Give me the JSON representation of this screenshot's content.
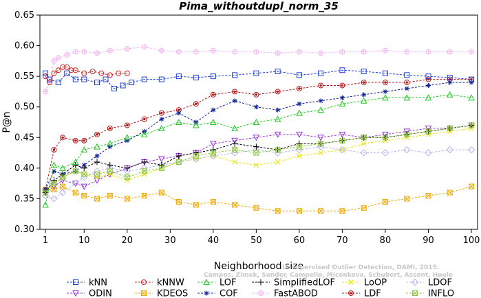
{
  "chart_data": {
    "type": "line",
    "title": "Pima_withoutdupl_norm_35",
    "xlabel": "Neighborhood size",
    "ylabel": "P@n",
    "xlim": [
      1,
      100
    ],
    "ylim": [
      0.3,
      0.65
    ],
    "xticks": [
      1,
      10,
      20,
      30,
      40,
      50,
      60,
      70,
      80,
      90,
      100
    ],
    "xtick_labels": [
      "1",
      "10",
      "20",
      "30",
      "40",
      "50",
      "60",
      "70",
      "80",
      "90",
      "100"
    ],
    "yticks": [
      0.3,
      0.35,
      0.4,
      0.45,
      0.5,
      0.55,
      0.6,
      0.65
    ],
    "ytick_labels": [
      "0.30",
      "0.35",
      "0.40",
      "0.45",
      "0.50",
      "0.55",
      "0.60",
      "0.65"
    ],
    "grid": false,
    "legend_position": "bottom",
    "watermark": [
      "Unsupervised Outlier Detection, DAMI, 2015.",
      "Campos, Zimek, Sander, Campello, Micenkova, Schubert, Assent, Houle"
    ],
    "series": [
      {
        "name": "kNN",
        "color": "#1a3cd8",
        "marker": "square",
        "x": [
          1,
          2,
          4,
          6,
          8,
          10,
          13,
          15,
          17,
          19,
          21,
          24,
          28,
          32,
          36,
          40,
          45,
          50,
          55,
          60,
          65,
          70,
          75,
          80,
          85,
          90,
          95,
          100
        ],
        "values": [
          0.555,
          0.545,
          0.54,
          0.555,
          0.545,
          0.545,
          0.54,
          0.545,
          0.53,
          0.535,
          0.54,
          0.545,
          0.545,
          0.55,
          0.548,
          0.55,
          0.552,
          0.555,
          0.558,
          0.552,
          0.555,
          0.56,
          0.558,
          0.555,
          0.552,
          0.55,
          0.548,
          0.545
        ]
      },
      {
        "name": "kNNW",
        "color": "#d81c1c",
        "marker": "circle",
        "x": [
          1,
          2,
          3,
          4,
          5,
          6,
          7,
          8,
          10,
          12,
          14,
          16,
          18,
          20
        ],
        "values": [
          0.55,
          0.54,
          0.555,
          0.56,
          0.565,
          0.565,
          0.56,
          0.56,
          0.555,
          0.558,
          0.555,
          0.552,
          0.555,
          0.555
        ]
      },
      {
        "name": "LOF",
        "color": "#1ec81e",
        "marker": "triangle",
        "x": [
          1,
          3,
          5,
          8,
          10,
          13,
          16,
          20,
          24,
          28,
          32,
          36,
          40,
          45,
          50,
          55,
          60,
          65,
          70,
          75,
          80,
          85,
          90,
          95,
          100
        ],
        "values": [
          0.34,
          0.405,
          0.4,
          0.41,
          0.43,
          0.435,
          0.44,
          0.45,
          0.455,
          0.465,
          0.475,
          0.47,
          0.475,
          0.465,
          0.475,
          0.48,
          0.49,
          0.495,
          0.505,
          0.51,
          0.515,
          0.515,
          0.515,
          0.52,
          0.515
        ]
      },
      {
        "name": "SimplifiedLOF",
        "color": "#000000",
        "marker": "plus",
        "x": [
          1,
          3,
          5,
          8,
          10,
          13,
          16,
          20,
          24,
          28,
          32,
          36,
          40,
          45,
          50,
          55,
          60,
          65,
          70,
          75,
          80,
          85,
          90,
          95,
          100
        ],
        "values": [
          0.36,
          0.38,
          0.39,
          0.405,
          0.4,
          0.41,
          0.405,
          0.4,
          0.41,
          0.405,
          0.42,
          0.425,
          0.43,
          0.44,
          0.435,
          0.43,
          0.44,
          0.44,
          0.445,
          0.45,
          0.45,
          0.455,
          0.46,
          0.465,
          0.47
        ]
      },
      {
        "name": "LoOP",
        "color": "#e6e600",
        "marker": "x",
        "x": [
          1,
          3,
          5,
          8,
          10,
          13,
          16,
          20,
          24,
          28,
          32,
          36,
          40,
          45,
          50,
          55,
          60,
          65,
          70,
          75,
          80,
          85,
          90,
          95,
          100
        ],
        "values": [
          0.365,
          0.375,
          0.385,
          0.395,
          0.39,
          0.385,
          0.39,
          0.38,
          0.39,
          0.4,
          0.41,
          0.415,
          0.42,
          0.41,
          0.405,
          0.41,
          0.42,
          0.425,
          0.43,
          0.44,
          0.445,
          0.45,
          0.455,
          0.46,
          0.465
        ]
      },
      {
        "name": "LDOF",
        "color": "#b4b4f0",
        "marker": "diamond",
        "x": [
          1,
          3,
          5,
          8,
          10,
          13,
          16,
          20,
          24,
          28,
          32,
          36,
          40,
          45,
          50,
          55,
          60,
          65,
          70,
          75,
          80,
          85,
          90,
          95,
          100
        ],
        "values": [
          0.355,
          0.35,
          0.36,
          0.375,
          0.385,
          0.395,
          0.4,
          0.395,
          0.4,
          0.405,
          0.41,
          0.415,
          0.42,
          0.425,
          0.43,
          0.425,
          0.43,
          0.435,
          0.43,
          0.425,
          0.425,
          0.43,
          0.425,
          0.43,
          0.43
        ]
      },
      {
        "name": "ODIN",
        "color": "#9b30d8",
        "marker": "triangle-down",
        "x": [
          1,
          3,
          5,
          8,
          10,
          13,
          16,
          20,
          24,
          28,
          32,
          36,
          40,
          45,
          50,
          55,
          60,
          65,
          70,
          75,
          80,
          85,
          90,
          95,
          100
        ],
        "values": [
          0.36,
          0.37,
          0.38,
          0.375,
          0.37,
          0.38,
          0.39,
          0.4,
          0.41,
          0.415,
          0.42,
          0.425,
          0.44,
          0.445,
          0.45,
          0.455,
          0.455,
          0.45,
          0.455,
          0.45,
          0.455,
          0.46,
          0.465,
          0.465,
          0.47
        ]
      },
      {
        "name": "KDEOS",
        "color": "#f0a800",
        "marker": "square-x",
        "x": [
          1,
          3,
          5,
          8,
          10,
          13,
          16,
          20,
          24,
          28,
          32,
          36,
          40,
          45,
          50,
          55,
          60,
          65,
          70,
          75,
          80,
          85,
          90,
          95,
          100
        ],
        "values": [
          0.365,
          0.365,
          0.37,
          0.36,
          0.355,
          0.35,
          0.355,
          0.35,
          0.355,
          0.36,
          0.345,
          0.34,
          0.345,
          0.34,
          0.335,
          0.33,
          0.33,
          0.33,
          0.33,
          0.335,
          0.345,
          0.35,
          0.355,
          0.36,
          0.37
        ]
      },
      {
        "name": "COF",
        "color": "#0a1e96",
        "marker": "asterisk",
        "x": [
          1,
          3,
          5,
          8,
          10,
          13,
          16,
          20,
          24,
          28,
          32,
          36,
          40,
          45,
          50,
          55,
          60,
          65,
          70,
          75,
          80,
          85,
          90,
          95,
          100
        ],
        "values": [
          0.365,
          0.395,
          0.39,
          0.395,
          0.405,
          0.42,
          0.435,
          0.445,
          0.46,
          0.48,
          0.49,
          0.475,
          0.495,
          0.51,
          0.5,
          0.495,
          0.505,
          0.51,
          0.515,
          0.52,
          0.525,
          0.53,
          0.535,
          0.54,
          0.54
        ]
      },
      {
        "name": "FastABOD",
        "color": "#f5b4f0",
        "marker": "circle-plus",
        "x": [
          1,
          2,
          3,
          4,
          6,
          8,
          10,
          13,
          16,
          20,
          24,
          28,
          32,
          36,
          40,
          45,
          50,
          55,
          60,
          65,
          70,
          75,
          80,
          85,
          90,
          95,
          100
        ],
        "values": [
          0.525,
          0.54,
          0.575,
          0.58,
          0.585,
          0.59,
          0.59,
          0.588,
          0.592,
          0.595,
          0.598,
          0.592,
          0.59,
          0.59,
          0.592,
          0.59,
          0.59,
          0.588,
          0.59,
          0.588,
          0.59,
          0.59,
          0.592,
          0.59,
          0.59,
          0.59,
          0.59
        ]
      },
      {
        "name": "LDF",
        "color": "#b41414",
        "marker": "circle-dot",
        "x": [
          1,
          3,
          5,
          8,
          10,
          13,
          16,
          20,
          24,
          28,
          32,
          36,
          40,
          45,
          50,
          55,
          60,
          65,
          70,
          75,
          80,
          85,
          90,
          95,
          100
        ],
        "values": [
          0.365,
          0.43,
          0.45,
          0.445,
          0.445,
          0.455,
          0.465,
          0.47,
          0.48,
          0.49,
          0.495,
          0.505,
          0.52,
          0.525,
          0.52,
          0.525,
          0.53,
          0.535,
          0.535,
          0.54,
          0.54,
          0.54,
          0.545,
          0.545,
          0.545
        ]
      },
      {
        "name": "INFLO",
        "color": "#8cc83c",
        "marker": "square-x",
        "x": [
          1,
          3,
          5,
          8,
          10,
          13,
          16,
          20,
          24,
          28,
          32,
          36,
          40,
          45,
          50,
          55,
          60,
          65,
          70,
          75,
          80,
          85,
          90,
          95,
          100
        ],
        "values": [
          0.36,
          0.375,
          0.385,
          0.395,
          0.39,
          0.39,
          0.395,
          0.385,
          0.395,
          0.4,
          0.41,
          0.42,
          0.425,
          0.43,
          0.425,
          0.43,
          0.435,
          0.44,
          0.445,
          0.45,
          0.45,
          0.455,
          0.46,
          0.465,
          0.47
        ]
      }
    ]
  }
}
